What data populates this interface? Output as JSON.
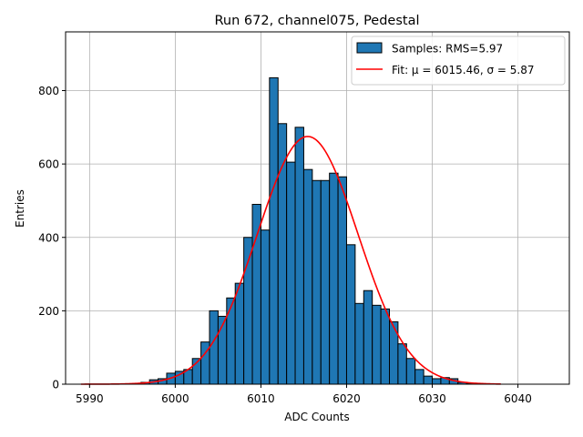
{
  "chart_data": {
    "type": "bar",
    "title": "Run 672, channel075, Pedestal",
    "xlabel": "ADC Counts",
    "ylabel": "Entries",
    "xlim": [
      5987.2,
      6046.0
    ],
    "ylim": [
      0,
      960
    ],
    "xticks": [
      5990,
      6000,
      6010,
      6020,
      6030,
      6040
    ],
    "yticks": [
      0,
      200,
      400,
      600,
      800
    ],
    "grid": true,
    "legend_position": "top-right",
    "bin_edges_start": 5996,
    "bin_width": 1,
    "values": [
      5,
      12,
      15,
      30,
      35,
      40,
      70,
      115,
      200,
      185,
      235,
      275,
      400,
      490,
      420,
      835,
      710,
      605,
      700,
      585,
      555,
      555,
      575,
      565,
      380,
      220,
      255,
      215,
      205,
      170,
      110,
      70,
      40,
      22,
      15,
      18,
      15,
      5,
      2
    ],
    "series": [
      {
        "name": "Samples: RMS=5.97",
        "kind": "histogram",
        "color": "#1f77b4"
      },
      {
        "name": "Fit: μ = 6015.46, σ = 5.87",
        "kind": "gaussian",
        "color": "#ff0000",
        "mu": 6015.46,
        "sigma": 5.87,
        "amplitude": 675,
        "x_range": [
          5989,
          6038
        ]
      }
    ]
  }
}
